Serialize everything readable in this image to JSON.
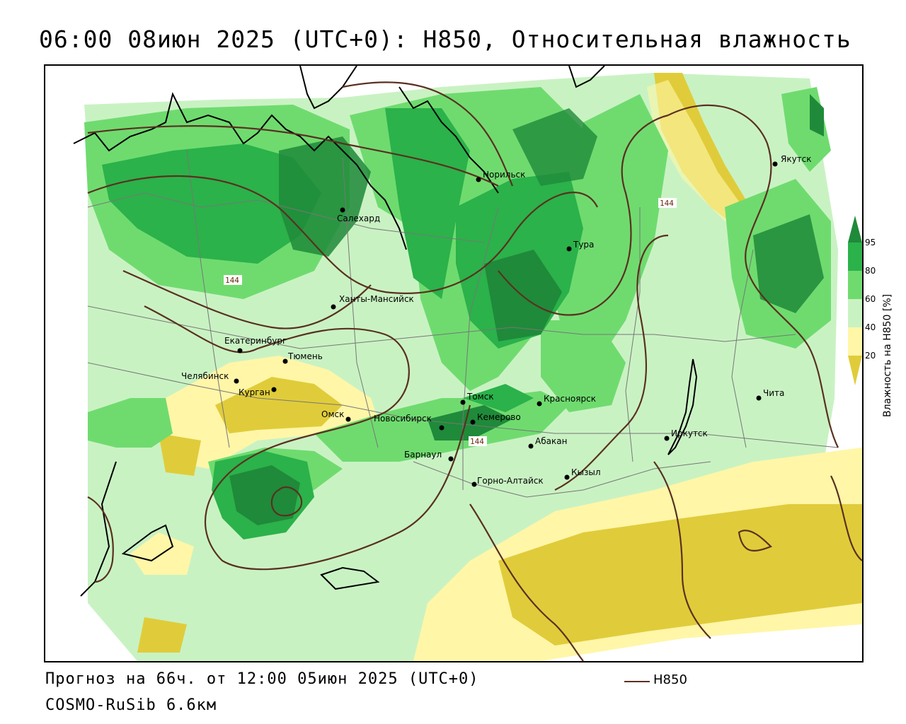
{
  "title": "06:00 08июн 2025 (UTC+0): H850, Относительная влажность",
  "footer": {
    "forecast": "Прогноз на 66ч. от 12:00 05июн 2025 (UTC+0)",
    "model": "COSMO-RuSib 6.6км"
  },
  "key": {
    "label": "H850",
    "color": "#5a3020"
  },
  "legend": {
    "title": "Влажность на H850 [%]",
    "ticks": [
      "95",
      "80",
      "60",
      "40",
      "20"
    ],
    "colors": {
      "above95": "#1f8a3a",
      "80_95": "#2bb24a",
      "60_80": "#6fdb6f",
      "40_60": "#c9f2c3",
      "20_40": "#fff6a8",
      "below20": "#e0cc3a"
    }
  },
  "contour_labels": [
    "144",
    "144",
    "144"
  ],
  "cities": [
    {
      "name": "Якутск"
    },
    {
      "name": "Норильск"
    },
    {
      "name": "Салехард"
    },
    {
      "name": "Тура"
    },
    {
      "name": "Ханты-Мансийск"
    },
    {
      "name": "Екатеринбург"
    },
    {
      "name": "Тюмень"
    },
    {
      "name": "Челябинск"
    },
    {
      "name": "Курган"
    },
    {
      "name": "Омск"
    },
    {
      "name": "Новосибирск"
    },
    {
      "name": "Томск"
    },
    {
      "name": "Кемерово"
    },
    {
      "name": "Красноярск"
    },
    {
      "name": "Барнаул"
    },
    {
      "name": "Абакан"
    },
    {
      "name": "Горно-Алтайск"
    },
    {
      "name": "Кызыл"
    },
    {
      "name": "Иркутск"
    },
    {
      "name": "Чита"
    }
  ]
}
